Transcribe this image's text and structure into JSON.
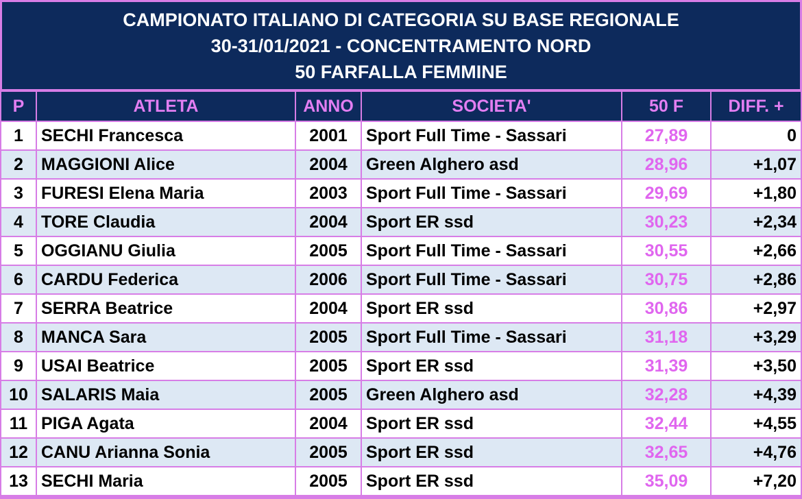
{
  "header": {
    "lines": [
      "CAMPIONATO ITALIANO DI CATEGORIA SU BASE REGIONALE",
      "30-31/01/2021 - CONCENTRAMENTO NORD",
      "50 FARFALLA FEMMINE"
    ]
  },
  "table": {
    "columns": [
      "P",
      "ATLETA",
      "ANNO",
      "SOCIETA'",
      "50 F",
      "DIFF. +"
    ],
    "rows": [
      [
        "1",
        "SECHI Francesca",
        "2001",
        "Sport Full Time - Sassari",
        "27,89",
        "0"
      ],
      [
        "2",
        "MAGGIONI Alice",
        "2004",
        "Green Alghero asd",
        "28,96",
        "+1,07"
      ],
      [
        "3",
        "FURESI Elena Maria",
        "2003",
        "Sport Full Time - Sassari",
        "29,69",
        "+1,80"
      ],
      [
        "4",
        "TORE Claudia",
        "2004",
        "Sport ER ssd",
        "30,23",
        "+2,34"
      ],
      [
        "5",
        "OGGIANU Giulia",
        "2005",
        "Sport Full Time - Sassari",
        "30,55",
        "+2,66"
      ],
      [
        "6",
        "CARDU Federica",
        "2006",
        "Sport Full Time - Sassari",
        "30,75",
        "+2,86"
      ],
      [
        "7",
        "SERRA Beatrice",
        "2004",
        "Sport ER ssd",
        "30,86",
        "+2,97"
      ],
      [
        "8",
        "MANCA Sara",
        "2005",
        "Sport Full Time - Sassari",
        "31,18",
        "+3,29"
      ],
      [
        "9",
        "USAI Beatrice",
        "2005",
        "Sport ER ssd",
        "31,39",
        "+3,50"
      ],
      [
        "10",
        "SALARIS Maia",
        "2005",
        "Green Alghero asd",
        "32,28",
        "+4,39"
      ],
      [
        "11",
        "PIGA Agata",
        "2004",
        "Sport ER ssd",
        "32,44",
        "+4,55"
      ],
      [
        "12",
        "CANU Arianna Sonia",
        "2005",
        "Sport ER ssd",
        "32,65",
        "+4,76"
      ],
      [
        "13",
        "SECHI Maria",
        "2005",
        "Sport ER ssd",
        "35,09",
        "+7,20"
      ]
    ]
  }
}
